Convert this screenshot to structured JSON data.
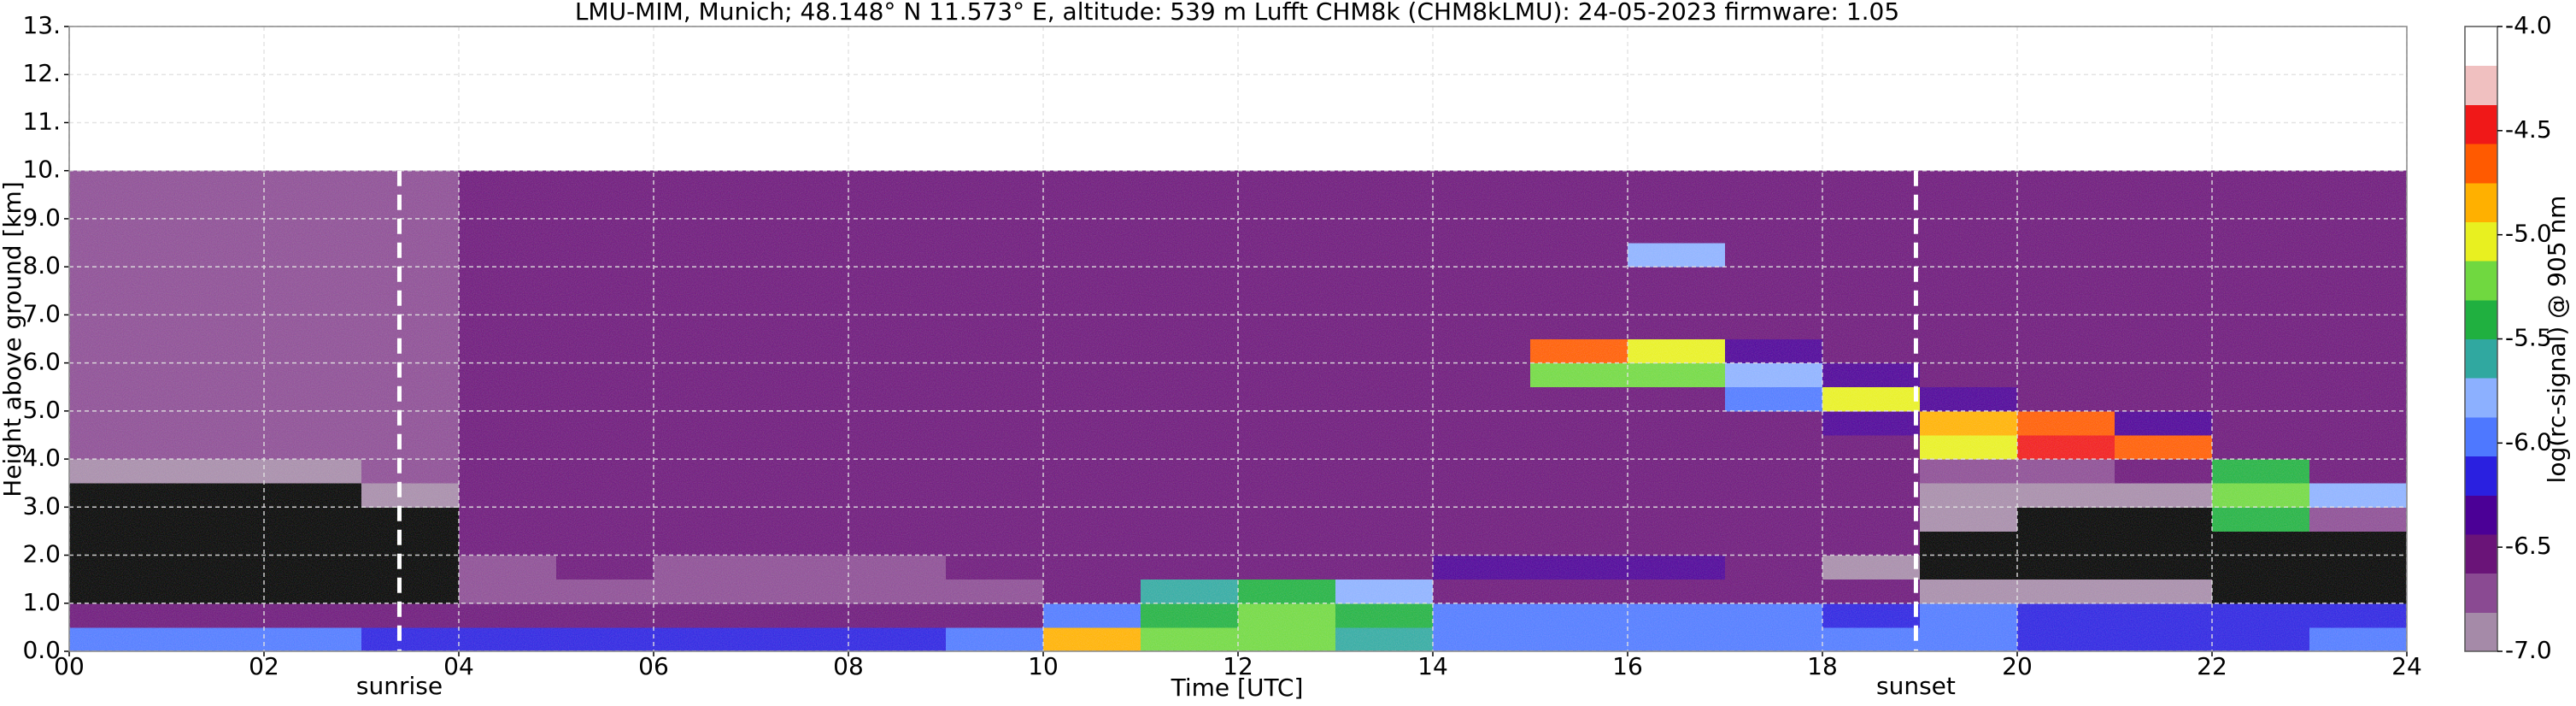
{
  "chart_data": {
    "type": "heatmap",
    "title": "LMU-MIM, Munich; 48.148° N 11.573° E, altitude: 539 m    Lufft CHM8k (CHM8kLMU): 24-05-2023    firmware: 1.05",
    "x_label": "Time [UTC]",
    "y_label": "Height above ground [km]",
    "colorbar_label": "log(rc-signal) @ 905 nm",
    "xlim": [
      0,
      24
    ],
    "xticks": [
      {
        "value": 0,
        "label": "00"
      },
      {
        "value": 2,
        "label": "02"
      },
      {
        "value": 4,
        "label": "04"
      },
      {
        "value": 6,
        "label": "06"
      },
      {
        "value": 8,
        "label": "08"
      },
      {
        "value": 10,
        "label": "10"
      },
      {
        "value": 12,
        "label": "12"
      },
      {
        "value": 14,
        "label": "14"
      },
      {
        "value": 16,
        "label": "16"
      },
      {
        "value": 18,
        "label": "18"
      },
      {
        "value": 20,
        "label": "20"
      },
      {
        "value": 22,
        "label": "22"
      },
      {
        "value": 24,
        "label": "24"
      }
    ],
    "ylim": [
      0,
      13
    ],
    "yticks": [
      {
        "value": 0,
        "label": "0.0"
      },
      {
        "value": 1,
        "label": "1.0"
      },
      {
        "value": 2,
        "label": "2.0"
      },
      {
        "value": 3,
        "label": "3.0"
      },
      {
        "value": 4,
        "label": "4.0"
      },
      {
        "value": 5,
        "label": "5.0"
      },
      {
        "value": 6,
        "label": "6.0"
      },
      {
        "value": 7,
        "label": "7.0"
      },
      {
        "value": 8,
        "label": "8.0"
      },
      {
        "value": 9,
        "label": "9.0"
      },
      {
        "value": 10,
        "label": "10."
      },
      {
        "value": 11,
        "label": "11."
      },
      {
        "value": 12,
        "label": "12."
      },
      {
        "value": 13,
        "label": "13."
      }
    ],
    "grid": true,
    "clim": [
      -7,
      -4
    ],
    "cticks": [
      {
        "value": -7,
        "label": "-7.0"
      },
      -6.5,
      {
        "value": -6,
        "label": "-6.0"
      },
      -5.5,
      {
        "value": -5,
        "label": "-5.0"
      },
      -4.5,
      {
        "value": -4,
        "label": "-4.0"
      }
    ],
    "colormap": [
      "#a58aa8",
      "#8a4a92",
      "#6a1478",
      "#4b0096",
      "#2a20e0",
      "#4e78ff",
      "#8cb0ff",
      "#30a8a0",
      "#20b040",
      "#70d840",
      "#e8f020",
      "#ffb000",
      "#ff5a00",
      "#f01818",
      "#f0c0c0",
      "#ffffff"
    ],
    "under_color": "#000000",
    "x_bins": [
      0,
      1,
      2,
      3,
      4,
      5,
      6,
      7,
      8,
      9,
      10,
      11,
      12,
      13,
      14,
      15,
      16,
      17,
      18,
      19,
      20,
      21,
      22,
      23,
      24
    ],
    "y_bins": [
      0,
      0.5,
      1,
      1.5,
      2,
      2.5,
      3,
      3.5,
      4,
      4.5,
      5,
      5.5,
      6,
      6.5,
      7,
      7.5,
      8,
      8.5,
      9,
      9.5,
      10
    ],
    "z": [
      [
        -6.0,
        -6.0,
        -6.0,
        -6.1,
        -6.2,
        -6.2,
        -6.1,
        -6.1,
        -6.1,
        -6.0,
        -4.9,
        -5.3,
        -5.2,
        -5.6,
        -6.0,
        -6.0,
        -6.0,
        -6.0,
        -6.0,
        -6.0,
        -6.1,
        -6.1,
        -6.1,
        -6.0
      ],
      [
        -6.6,
        -6.6,
        -6.6,
        -6.5,
        -6.5,
        -6.5,
        -6.6,
        -6.6,
        -6.6,
        -6.5,
        -5.9,
        -5.4,
        -5.3,
        -5.5,
        -6.0,
        -6.0,
        -6.0,
        -6.0,
        -6.2,
        -6.0,
        -6.1,
        -6.2,
        -6.2,
        -6.1
      ],
      [
        -7.5,
        -7.5,
        -7.5,
        -7.4,
        -6.8,
        -6.8,
        -6.8,
        -6.8,
        -6.8,
        -6.7,
        -6.6,
        -5.6,
        -5.4,
        -5.8,
        -6.5,
        -6.5,
        -6.5,
        -6.6,
        -6.6,
        -6.9,
        -6.9,
        -6.9,
        -7.3,
        -7.3
      ],
      [
        -7.5,
        -7.5,
        -7.5,
        -7.3,
        -6.7,
        -6.6,
        -6.7,
        -6.7,
        -6.7,
        -6.6,
        -6.6,
        -6.6,
        -6.5,
        -6.5,
        -6.4,
        -6.4,
        -6.4,
        -6.6,
        -6.9,
        -7.2,
        -7.3,
        -7.3,
        -7.3,
        -7.3
      ],
      [
        -7.5,
        -7.5,
        -7.4,
        -7.2,
        -6.6,
        -6.5,
        -6.5,
        -6.5,
        -6.5,
        -6.5,
        -6.5,
        -6.5,
        -6.5,
        -6.5,
        -6.5,
        -6.5,
        -6.5,
        -6.6,
        -6.6,
        -7.1,
        -7.2,
        -7.3,
        -7.3,
        -7.3
      ],
      [
        -7.4,
        -7.4,
        -7.3,
        -7.1,
        -6.5,
        -6.5,
        -6.5,
        -6.5,
        -6.5,
        -6.5,
        -6.5,
        -6.5,
        -6.5,
        -6.5,
        -6.5,
        -6.5,
        -6.5,
        -6.5,
        -6.6,
        -7.0,
        -7.1,
        -7.2,
        -5.5,
        -6.8
      ],
      [
        -7.3,
        -7.2,
        -7.2,
        -7.0,
        -6.5,
        -6.5,
        -6.5,
        -6.5,
        -6.5,
        -6.5,
        -6.5,
        -6.5,
        -6.5,
        -6.5,
        -6.5,
        -6.5,
        -6.5,
        -6.5,
        -6.6,
        -6.9,
        -7.0,
        -6.9,
        -5.3,
        -5.8
      ],
      [
        -7.0,
        -7.0,
        -6.9,
        -6.8,
        -6.5,
        -6.5,
        -6.5,
        -6.5,
        -6.5,
        -6.5,
        -6.5,
        -6.5,
        -6.5,
        -6.5,
        -6.5,
        -6.5,
        -6.5,
        -6.5,
        -6.6,
        -6.7,
        -6.8,
        -6.5,
        -5.5,
        -6.5
      ],
      [
        -6.8,
        -6.8,
        -6.7,
        -6.7,
        -6.5,
        -6.5,
        -6.5,
        -6.5,
        -6.5,
        -6.5,
        -6.5,
        -6.5,
        -6.5,
        -6.5,
        -6.5,
        -6.5,
        -6.5,
        -6.5,
        -6.5,
        -5.0,
        -4.5,
        -4.7,
        -6.6,
        -6.6
      ],
      [
        -6.7,
        -6.7,
        -6.7,
        -6.7,
        -6.5,
        -6.5,
        -6.5,
        -6.5,
        -6.5,
        -6.5,
        -6.5,
        -6.5,
        -6.5,
        -6.5,
        -6.5,
        -6.5,
        -6.5,
        -6.5,
        -6.3,
        -4.8,
        -4.6,
        -6.3,
        -6.6,
        -6.6
      ],
      [
        -6.7,
        -6.7,
        -6.7,
        -6.7,
        -6.5,
        -6.5,
        -6.5,
        -6.5,
        -6.5,
        -6.5,
        -6.5,
        -6.5,
        -6.5,
        -6.5,
        -6.5,
        -6.5,
        -6.5,
        -6.0,
        -5.0,
        -6.4,
        -6.6,
        -6.6,
        -6.6,
        -6.6
      ],
      [
        -6.7,
        -6.7,
        -6.7,
        -6.7,
        -6.5,
        -6.5,
        -6.5,
        -6.5,
        -6.5,
        -6.5,
        -6.5,
        -6.5,
        -6.5,
        -6.5,
        -6.5,
        -5.2,
        -5.3,
        -5.8,
        -6.3,
        -6.6,
        -6.6,
        -6.6,
        -6.6,
        -6.6
      ],
      [
        -6.7,
        -6.7,
        -6.7,
        -6.7,
        -6.5,
        -6.5,
        -6.5,
        -6.5,
        -6.5,
        -6.5,
        -6.5,
        -6.5,
        -6.5,
        -6.5,
        -6.5,
        -4.6,
        -5.0,
        -6.4,
        -6.6,
        -6.6,
        -6.6,
        -6.6,
        -6.6,
        -6.6
      ],
      [
        -6.7,
        -6.7,
        -6.7,
        -6.7,
        -6.5,
        -6.5,
        -6.5,
        -6.5,
        -6.5,
        -6.5,
        -6.5,
        -6.5,
        -6.5,
        -6.5,
        -6.5,
        -6.5,
        -6.5,
        -6.5,
        -6.5,
        -6.6,
        -6.6,
        -6.6,
        -6.6,
        -6.6
      ],
      [
        -6.7,
        -6.7,
        -6.7,
        -6.7,
        -6.5,
        -6.5,
        -6.5,
        -6.5,
        -6.5,
        -6.5,
        -6.5,
        -6.5,
        -6.5,
        -6.5,
        -6.5,
        -6.5,
        -6.5,
        -6.5,
        -6.5,
        -6.6,
        -6.6,
        -6.6,
        -6.6,
        -6.6
      ],
      [
        -6.7,
        -6.7,
        -6.7,
        -6.7,
        -6.5,
        -6.5,
        -6.5,
        -6.5,
        -6.5,
        -6.5,
        -6.5,
        -6.5,
        -6.5,
        -6.5,
        -6.5,
        -6.5,
        -6.5,
        -6.5,
        -6.5,
        -6.6,
        -6.6,
        -6.6,
        -6.6,
        -6.6
      ],
      [
        -6.7,
        -6.7,
        -6.7,
        -6.7,
        -6.5,
        -6.5,
        -6.5,
        -6.5,
        -6.5,
        -6.5,
        -6.5,
        -6.5,
        -6.5,
        -6.5,
        -6.5,
        -6.5,
        -5.8,
        -6.5,
        -6.5,
        -6.6,
        -6.6,
        -6.6,
        -6.6,
        -6.6
      ],
      [
        -6.7,
        -6.7,
        -6.7,
        -6.7,
        -6.5,
        -6.5,
        -6.5,
        -6.5,
        -6.5,
        -6.5,
        -6.5,
        -6.5,
        -6.5,
        -6.5,
        -6.5,
        -6.5,
        -6.5,
        -6.5,
        -6.5,
        -6.6,
        -6.6,
        -6.6,
        -6.6,
        -6.6
      ],
      [
        -6.7,
        -6.7,
        -6.7,
        -6.7,
        -6.5,
        -6.5,
        -6.5,
        -6.5,
        -6.5,
        -6.5,
        -6.5,
        -6.5,
        -6.5,
        -6.5,
        -6.5,
        -6.5,
        -6.5,
        -6.5,
        -6.5,
        -6.6,
        -6.6,
        -6.6,
        -6.6,
        -6.6
      ],
      [
        -6.7,
        -6.7,
        -6.7,
        -6.7,
        -6.5,
        -6.5,
        -6.5,
        -6.5,
        -6.5,
        -6.5,
        -6.5,
        -6.5,
        -6.5,
        -6.5,
        -6.5,
        -6.5,
        -6.5,
        -6.5,
        -6.5,
        -6.6,
        -6.6,
        -6.6,
        -6.6,
        -6.6
      ]
    ],
    "vlines": [
      {
        "x": 3.39,
        "label": "sunrise"
      },
      {
        "x": 18.96,
        "label": "sunset"
      }
    ]
  }
}
